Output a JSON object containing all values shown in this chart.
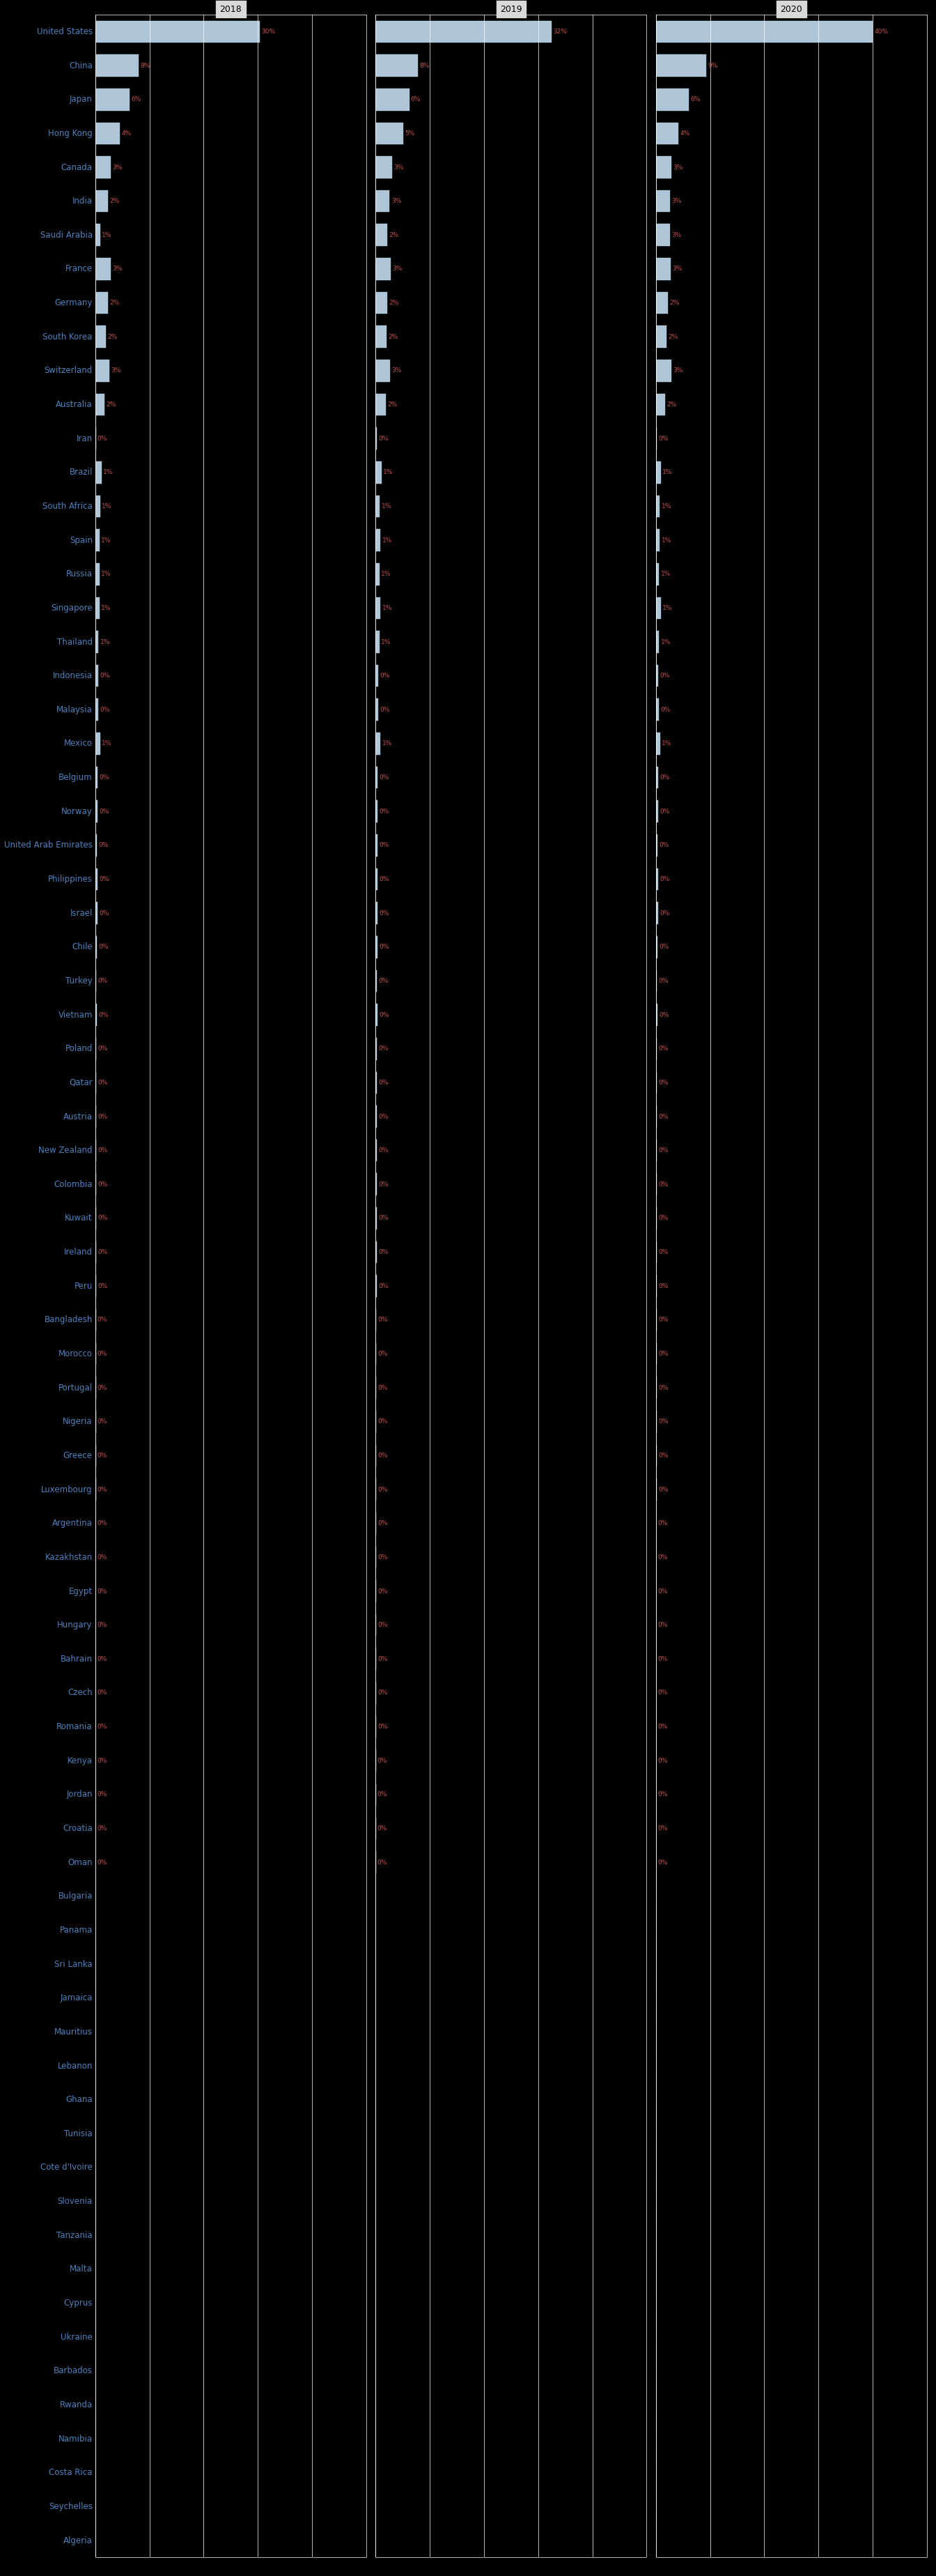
{
  "countries": [
    "United States",
    "China",
    "Japan",
    "Hong Kong",
    "Canada",
    "India",
    "Saudi Arabia",
    "France",
    "Germany",
    "South Korea",
    "Switzerland",
    "Australia",
    "Iran",
    "Brazil",
    "South Africa",
    "Spain",
    "Russia",
    "Singapore",
    "Thailand",
    "Indonesia",
    "Malaysia",
    "Mexico",
    "Belgium",
    "Norway",
    "United Arab Emirates",
    "Philippines",
    "Israel",
    "Chile",
    "Turkey",
    "Vietnam",
    "Poland",
    "Qatar",
    "Austria",
    "New Zealand",
    "Colombia",
    "Kuwait",
    "Ireland",
    "Peru",
    "Bangladesh",
    "Morocco",
    "Portugal",
    "Nigeria",
    "Greece",
    "Luxembourg",
    "Argentina",
    "Kazakhstan",
    "Egypt",
    "Hungary",
    "Bahrain",
    "Czech",
    "Romania",
    "Kenya",
    "Jordan",
    "Croatia",
    "Oman",
    "Bulgaria",
    "Panama",
    "Sri Lanka",
    "Jamaica",
    "Mauritius",
    "Lebanon",
    "Ghana",
    "Tunisia",
    "Cote d'Ivoire",
    "Slovenia",
    "Tanzania",
    "Malta",
    "Cyprus",
    "Ukraine",
    "Barbados",
    "Rwanda",
    "Namibia",
    "Costa Rica",
    "Seychelles",
    "Algeria"
  ],
  "values_2018": [
    30.4,
    8.0,
    6.3,
    4.5,
    2.9,
    2.4,
    0.9,
    2.8,
    2.3,
    2.0,
    2.6,
    1.7,
    0.1,
    1.2,
    0.9,
    0.8,
    0.8,
    0.8,
    0.6,
    0.5,
    0.5,
    0.9,
    0.4,
    0.4,
    0.3,
    0.4,
    0.4,
    0.3,
    0.2,
    0.3,
    0.2,
    0.2,
    0.2,
    0.2,
    0.2,
    0.2,
    0.2,
    0.2,
    0.1,
    0.1,
    0.1,
    0.1,
    0.1,
    0.1,
    0.04,
    0.04,
    0.04,
    0.04,
    0.04,
    0.04,
    0.04,
    0.03,
    0.03,
    0.03,
    0.03,
    0.02,
    0.02,
    0.02,
    0.02,
    0.02,
    0.02,
    0.01,
    0.01,
    0.01,
    0.01,
    0.01,
    0.01,
    0.01,
    0.01,
    0.005,
    0.005,
    0.005,
    0.005,
    0.005,
    0.005
  ],
  "values_2019": [
    32.5,
    7.8,
    6.2,
    5.1,
    3.1,
    2.6,
    2.2,
    2.8,
    2.2,
    2.0,
    2.7,
    1.9,
    0.2,
    1.1,
    0.8,
    0.9,
    0.7,
    0.9,
    0.7,
    0.5,
    0.5,
    0.9,
    0.4,
    0.4,
    0.3,
    0.4,
    0.4,
    0.3,
    0.2,
    0.3,
    0.2,
    0.2,
    0.2,
    0.2,
    0.2,
    0.2,
    0.2,
    0.2,
    0.1,
    0.1,
    0.1,
    0.1,
    0.1,
    0.1,
    0.04,
    0.04,
    0.04,
    0.04,
    0.04,
    0.04,
    0.04,
    0.03,
    0.03,
    0.03,
    0.03,
    0.02,
    0.02,
    0.02,
    0.02,
    0.02,
    0.02,
    0.01,
    0.01,
    0.01,
    0.01,
    0.01,
    0.01,
    0.01,
    0.01,
    0.005,
    0.005,
    0.005,
    0.005,
    0.005,
    0.005
  ],
  "values_2020": [
    40.0,
    9.3,
    6.1,
    4.2,
    2.9,
    2.6,
    2.6,
    2.7,
    2.2,
    2.0,
    2.8,
    1.7,
    0.1,
    0.9,
    0.7,
    0.7,
    0.6,
    0.9,
    0.6,
    0.4,
    0.5,
    0.8,
    0.4,
    0.4,
    0.3,
    0.4,
    0.4,
    0.3,
    0.2,
    0.3,
    0.2,
    0.2,
    0.2,
    0.2,
    0.2,
    0.2,
    0.2,
    0.2,
    0.1,
    0.1,
    0.1,
    0.1,
    0.1,
    0.1,
    0.04,
    0.04,
    0.04,
    0.04,
    0.04,
    0.04,
    0.04,
    0.03,
    0.03,
    0.03,
    0.03,
    0.02,
    0.02,
    0.02,
    0.02,
    0.02,
    0.02,
    0.01,
    0.01,
    0.01,
    0.01,
    0.01,
    0.01,
    0.01,
    0.01,
    0.005,
    0.005,
    0.005,
    0.005,
    0.005,
    0.005
  ],
  "bar_color": "#aec6d8",
  "bar_edge_color": "#aec6d8",
  "background_color": "#000000",
  "panel_bg": "#000000",
  "header_bg": "#d9d9d9",
  "grid_color": "#ffffff",
  "text_color_label": "#4f81bd",
  "text_color_value": "#c0504d",
  "years": [
    "2018",
    "2019",
    "2020"
  ],
  "xlim": [
    0,
    50
  ],
  "xticks": [
    0,
    10,
    20,
    30,
    40,
    50
  ],
  "title_fontsize": 9,
  "label_fontsize": 8.5
}
